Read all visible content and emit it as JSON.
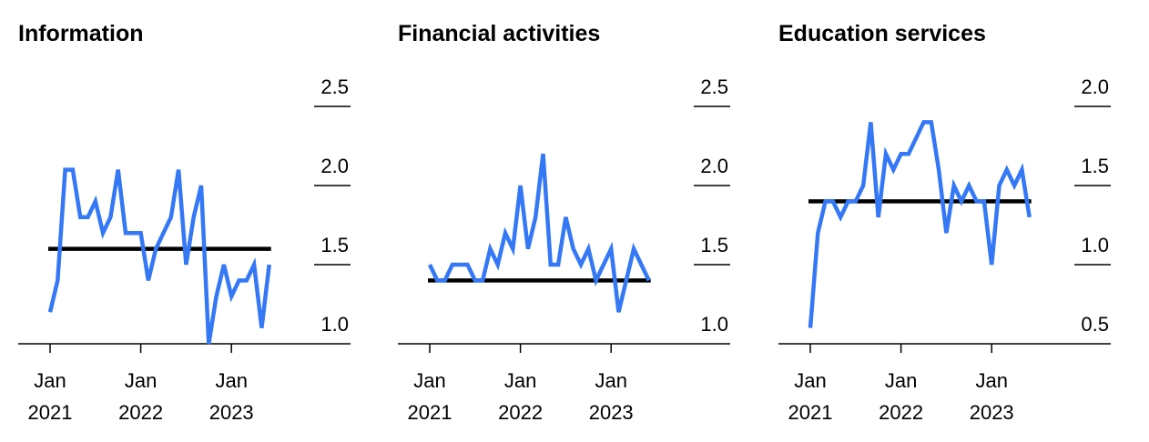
{
  "chart_data": [
    {
      "type": "line",
      "title": "Information",
      "x": [
        "2021-01",
        "2021-02",
        "2021-03",
        "2021-04",
        "2021-05",
        "2021-06",
        "2021-07",
        "2021-08",
        "2021-09",
        "2021-10",
        "2021-11",
        "2021-12",
        "2022-01",
        "2022-02",
        "2022-03",
        "2022-04",
        "2022-05",
        "2022-06",
        "2022-07",
        "2022-08",
        "2022-09",
        "2022-10",
        "2022-11",
        "2022-12",
        "2023-01",
        "2023-02",
        "2023-03",
        "2023-04",
        "2023-05",
        "2023-06"
      ],
      "series": [
        {
          "color": "#3478f6",
          "values": [
            1.2,
            1.4,
            2.1,
            2.1,
            1.8,
            1.8,
            1.9,
            1.7,
            1.8,
            2.1,
            1.7,
            1.7,
            1.7,
            1.4,
            1.6,
            1.7,
            1.8,
            2.1,
            1.5,
            1.8,
            2.0,
            1.0,
            1.3,
            1.5,
            1.3,
            1.4,
            1.4,
            1.5,
            1.1,
            1.5
          ]
        }
      ],
      "reference_line": {
        "value": 1.6,
        "color": "#000000"
      },
      "xticks": [
        {
          "value": "2021-01",
          "label": "Jan 2021"
        },
        {
          "value": "2022-01",
          "label": "Jan 2022"
        },
        {
          "value": "2023-01",
          "label": "Jan 2023"
        }
      ],
      "ylim": [
        1,
        2.5
      ],
      "yticks": [
        {
          "value": 1,
          "label": "1.0"
        },
        1.5,
        {
          "value": 2,
          "label": "2.0"
        },
        2.5
      ]
    },
    {
      "type": "line",
      "title": "Financial activities",
      "x": [
        "2021-01",
        "2021-02",
        "2021-03",
        "2021-04",
        "2021-05",
        "2021-06",
        "2021-07",
        "2021-08",
        "2021-09",
        "2021-10",
        "2021-11",
        "2021-12",
        "2022-01",
        "2022-02",
        "2022-03",
        "2022-04",
        "2022-05",
        "2022-06",
        "2022-07",
        "2022-08",
        "2022-09",
        "2022-10",
        "2022-11",
        "2022-12",
        "2023-01",
        "2023-02",
        "2023-03",
        "2023-04",
        "2023-05",
        "2023-06"
      ],
      "series": [
        {
          "color": "#3478f6",
          "values": [
            1.5,
            1.4,
            1.4,
            1.5,
            1.5,
            1.5,
            1.4,
            1.4,
            1.6,
            1.5,
            1.7,
            1.6,
            2.0,
            1.6,
            1.8,
            2.2,
            1.5,
            1.5,
            1.8,
            1.6,
            1.5,
            1.6,
            1.4,
            1.5,
            1.6,
            1.2,
            1.4,
            1.6,
            1.5,
            1.4
          ]
        }
      ],
      "reference_line": {
        "value": 1.4,
        "color": "#000000"
      },
      "xticks": [
        {
          "value": "2021-01",
          "label": "Jan 2021"
        },
        {
          "value": "2022-01",
          "label": "Jan 2022"
        },
        {
          "value": "2023-01",
          "label": "Jan 2023"
        }
      ],
      "ylim": [
        1,
        2.5
      ],
      "yticks": [
        {
          "value": 1,
          "label": "1.0"
        },
        1.5,
        {
          "value": 2,
          "label": "2.0"
        },
        2.5
      ]
    },
    {
      "type": "line",
      "title": "Education services",
      "x": [
        "2021-01",
        "2021-02",
        "2021-03",
        "2021-04",
        "2021-05",
        "2021-06",
        "2021-07",
        "2021-08",
        "2021-09",
        "2021-10",
        "2021-11",
        "2021-12",
        "2022-01",
        "2022-02",
        "2022-03",
        "2022-04",
        "2022-05",
        "2022-06",
        "2022-07",
        "2022-08",
        "2022-09",
        "2022-10",
        "2022-11",
        "2022-12",
        "2023-01",
        "2023-02",
        "2023-03",
        "2023-04",
        "2023-05",
        "2023-06"
      ],
      "series": [
        {
          "color": "#3478f6",
          "values": [
            0.6,
            1.2,
            1.4,
            1.4,
            1.3,
            1.4,
            1.4,
            1.5,
            1.9,
            1.3,
            1.7,
            1.6,
            1.7,
            1.7,
            1.8,
            1.9,
            1.9,
            1.6,
            1.2,
            1.5,
            1.4,
            1.5,
            1.4,
            1.4,
            1.0,
            1.5,
            1.6,
            1.5,
            1.6,
            1.3
          ]
        }
      ],
      "reference_line": {
        "value": 1.4,
        "color": "#000000"
      },
      "xticks": [
        {
          "value": "2021-01",
          "label": "Jan 2021"
        },
        {
          "value": "2022-01",
          "label": "Jan 2022"
        },
        {
          "value": "2023-01",
          "label": "Jan 2023"
        }
      ],
      "ylim": [
        0.5,
        2
      ],
      "yticks": [
        0.5,
        {
          "value": 1,
          "label": "1.0"
        },
        1.5,
        {
          "value": 2,
          "label": "2.0"
        }
      ]
    }
  ]
}
